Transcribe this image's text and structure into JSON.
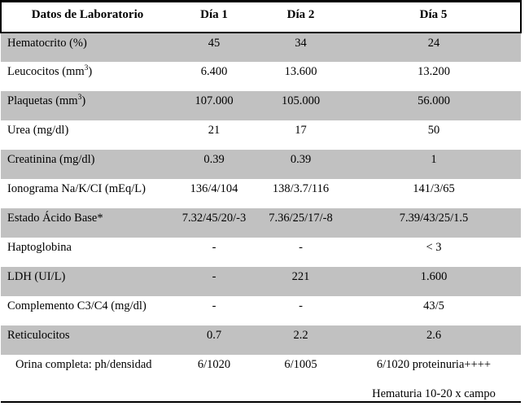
{
  "table": {
    "columns": [
      "Datos de Laboratorio",
      "Día 1",
      "Día 2",
      "Día 5"
    ],
    "rows": [
      {
        "label_parts": [
          {
            "t": "Hematocrito (%)"
          }
        ],
        "values": [
          "45",
          "34",
          "24"
        ],
        "shaded": true
      },
      {
        "label_parts": [
          {
            "t": "Leucocitos (mm"
          },
          {
            "t": "3",
            "sup": true
          },
          {
            "t": ")"
          }
        ],
        "values": [
          "6.400",
          "13.600",
          "13.200"
        ],
        "shaded": false
      },
      {
        "label_parts": [
          {
            "t": "Plaquetas (mm"
          },
          {
            "t": "3",
            "sup": true
          },
          {
            "t": ")"
          }
        ],
        "values": [
          "107.000",
          "105.000",
          "56.000"
        ],
        "shaded": true
      },
      {
        "label_parts": [
          {
            "t": "Urea (mg/dl)"
          }
        ],
        "values": [
          "21",
          "17",
          "50"
        ],
        "shaded": false
      },
      {
        "label_parts": [
          {
            "t": "Creatinina (mg/dl)"
          }
        ],
        "values": [
          "0.39",
          "0.39",
          "1"
        ],
        "shaded": true
      },
      {
        "label_parts": [
          {
            "t": "Ionograma Na/K/CI (mEq/L)"
          }
        ],
        "values": [
          "136/4/104",
          "138/3.7/116",
          "141/3/65"
        ],
        "shaded": false
      },
      {
        "label_parts": [
          {
            "t": "Estado Ácido Base*"
          }
        ],
        "values": [
          "7.32/45/20/-3",
          "7.36/25/17/-8",
          "7.39/43/25/1.5"
        ],
        "shaded": true
      },
      {
        "label_parts": [
          {
            "t": "Haptoglobina"
          }
        ],
        "values": [
          "-",
          "-",
          "< 3"
        ],
        "shaded": false
      },
      {
        "label_parts": [
          {
            "t": "LDH (UI/L)"
          }
        ],
        "values": [
          "-",
          "221",
          "1.600"
        ],
        "shaded": true
      },
      {
        "label_parts": [
          {
            "t": "Complemento C3/C4 (mg/dl)"
          }
        ],
        "values": [
          "-",
          "-",
          "43/5"
        ],
        "shaded": false
      },
      {
        "label_parts": [
          {
            "t": "Reticulocitos"
          }
        ],
        "values": [
          "0.7",
          "2.2",
          "2.6"
        ],
        "shaded": true
      },
      {
        "label_parts": [
          {
            "t": "Orina completa: ph/densidad"
          }
        ],
        "values": [
          "6/1020",
          "6/1005",
          "6/1020 proteinuria++++"
        ],
        "shaded": false,
        "indent": true
      },
      {
        "label_parts": [
          {
            "t": ""
          }
        ],
        "values": [
          "",
          "",
          "Hematuria 10-20 x campo"
        ],
        "shaded": false,
        "compact": true
      }
    ],
    "colors": {
      "shaded_row": "#c1c1c1",
      "border": "#000000",
      "background": "#ffffff",
      "text": "#000000"
    }
  }
}
